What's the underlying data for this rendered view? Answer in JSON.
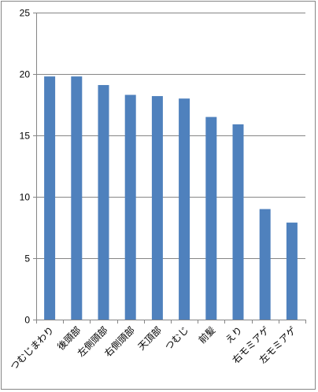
{
  "chart_data": {
    "type": "bar",
    "title": "",
    "xlabel": "",
    "ylabel": "",
    "categories": [
      "つむじまわり",
      "後頭部",
      "左側頭部",
      "右側頭部",
      "天頂部",
      "つむじ",
      "前髪",
      "えり",
      "右モミアゲ",
      "左モミアゲ"
    ],
    "values": [
      19.8,
      19.8,
      19.1,
      18.3,
      18.2,
      18.0,
      16.5,
      15.9,
      9.0,
      7.9
    ],
    "ylim": [
      0,
      25
    ],
    "yticks": [
      "0",
      "5",
      "10",
      "15",
      "20",
      "25"
    ],
    "grid": true,
    "legend": "none",
    "bar_color": "#4f81bd",
    "grid_color": "#868686"
  }
}
